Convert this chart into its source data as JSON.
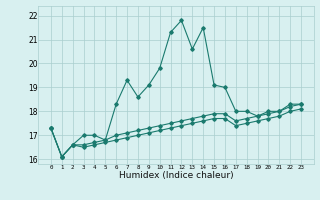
{
  "xlabel": "Humidex (Indice chaleur)",
  "x": [
    0,
    1,
    2,
    3,
    4,
    5,
    6,
    7,
    8,
    9,
    10,
    11,
    12,
    13,
    14,
    15,
    16,
    17,
    18,
    19,
    20,
    21,
    22,
    23
  ],
  "line1": [
    17.3,
    16.1,
    16.6,
    17.0,
    17.0,
    16.8,
    18.3,
    19.3,
    18.6,
    19.1,
    19.8,
    21.3,
    21.8,
    20.6,
    21.5,
    19.1,
    19.0,
    18.0,
    18.0,
    17.8,
    18.0,
    18.0,
    18.3,
    18.3
  ],
  "line2": [
    17.3,
    16.1,
    16.6,
    16.6,
    16.7,
    16.8,
    17.0,
    17.1,
    17.2,
    17.3,
    17.4,
    17.5,
    17.6,
    17.7,
    17.8,
    17.9,
    17.9,
    17.6,
    17.7,
    17.8,
    17.9,
    18.0,
    18.2,
    18.3
  ],
  "line3": [
    17.3,
    16.1,
    16.6,
    16.5,
    16.6,
    16.7,
    16.8,
    16.9,
    17.0,
    17.1,
    17.2,
    17.3,
    17.4,
    17.5,
    17.6,
    17.7,
    17.7,
    17.4,
    17.5,
    17.6,
    17.7,
    17.8,
    18.0,
    18.1
  ],
  "line_color": "#1a7a6e",
  "bg_color": "#d8f0f0",
  "grid_color": "#aacece",
  "ylim": [
    15.8,
    22.4
  ],
  "yticks": [
    16,
    17,
    18,
    19,
    20,
    21,
    22
  ],
  "xticks": [
    0,
    1,
    2,
    3,
    4,
    5,
    6,
    7,
    8,
    9,
    10,
    11,
    12,
    13,
    14,
    15,
    16,
    17,
    18,
    19,
    20,
    21,
    22,
    23
  ]
}
